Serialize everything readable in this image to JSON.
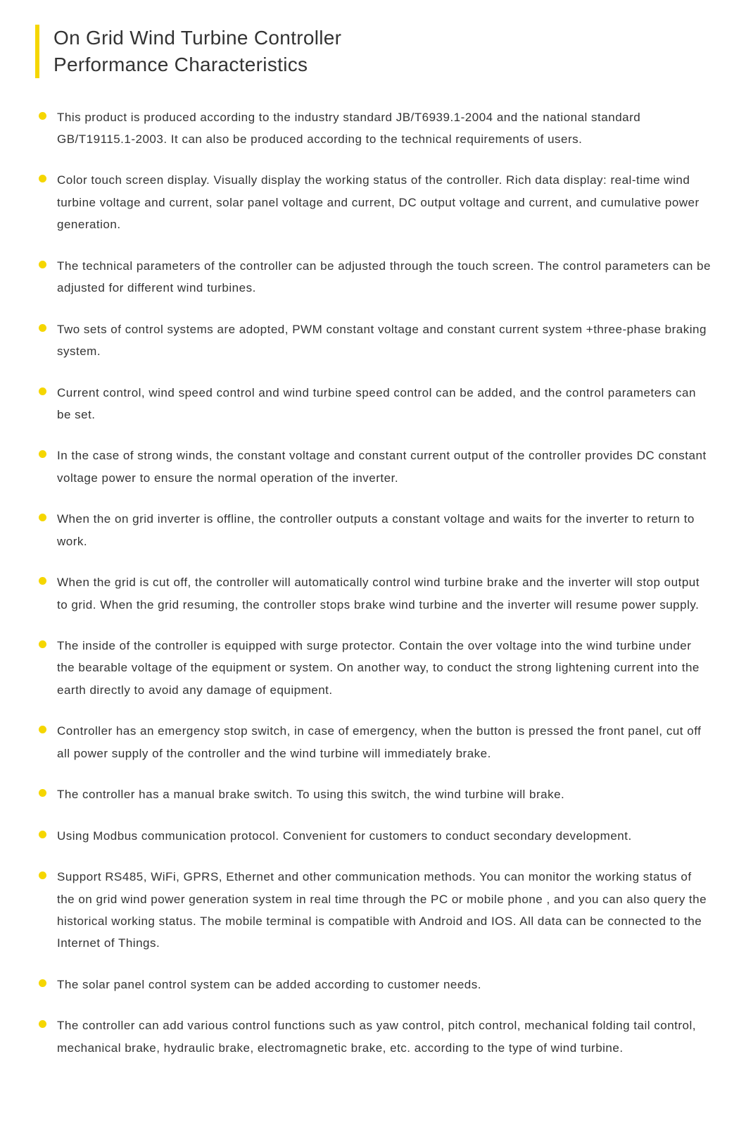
{
  "heading": {
    "line1": "On Grid Wind Turbine Controller",
    "line2": "Performance Characteristics"
  },
  "colors": {
    "accent": "#f5d600",
    "text": "#333333",
    "background": "#ffffff"
  },
  "typography": {
    "heading_fontsize": 28,
    "body_fontsize": 17,
    "body_lineheight": 1.85
  },
  "features": [
    "This product is produced according to the industry standard JB/T6939.1-2004 and the national standard GB/T19115.1-2003. It can also be produced according to the technical requirements of users.",
    "Color touch screen display. Visually display the working status of the controller. Rich data display: real-time wind turbine voltage and current, solar panel voltage and current, DC output voltage and current, and cumulative power generation.",
    "The technical parameters of the controller can be adjusted through the touch screen. The control parameters can be adjusted for different wind turbines.",
    "Two sets of control systems are adopted, PWM constant voltage and constant current system +three-phase braking system.",
    "Current control, wind speed control and wind turbine speed control can be added, and the control parameters can be set.",
    "In the case of strong winds, the constant voltage and constant current output of the controller provides DC constant voltage power to ensure the normal operation of the inverter.",
    "When the on grid inverter is offline, the controller outputs a constant voltage and waits for the inverter to return to work.",
    "When the grid is cut off, the controller will automatically control wind turbine brake and the inverter will stop output to grid. When the grid resuming, the controller stops brake wind turbine and the inverter will resume power supply.",
    "The inside of the controller is equipped with surge protector. Contain the over voltage into the wind turbine under the bearable voltage of the equipment or system. On another way, to conduct the strong lightening current into the earth directly to avoid any damage of equipment.",
    "Controller has an emergency stop switch, in case of emergency, when the button is pressed the front panel, cut off all power supply of the controller and the wind turbine will immediately brake.",
    "The controller has a manual brake switch. To using this switch, the wind turbine will brake.",
    "Using Modbus communication protocol. Convenient for customers to conduct secondary development.",
    "Support RS485, WiFi, GPRS, Ethernet and other communication methods. You can monitor the working status of the on grid wind power generation system in real time through the PC or mobile phone , and you can also query the historical working status. The mobile terminal is compatible with Android and IOS. All data can be connected to the Internet of Things.",
    "The solar panel control system can be added according to customer needs.",
    "The controller can add various control functions such as yaw control, pitch control, mechanical folding tail control, mechanical brake, hydraulic brake, electromagnetic brake, etc. according to the type of wind turbine."
  ]
}
